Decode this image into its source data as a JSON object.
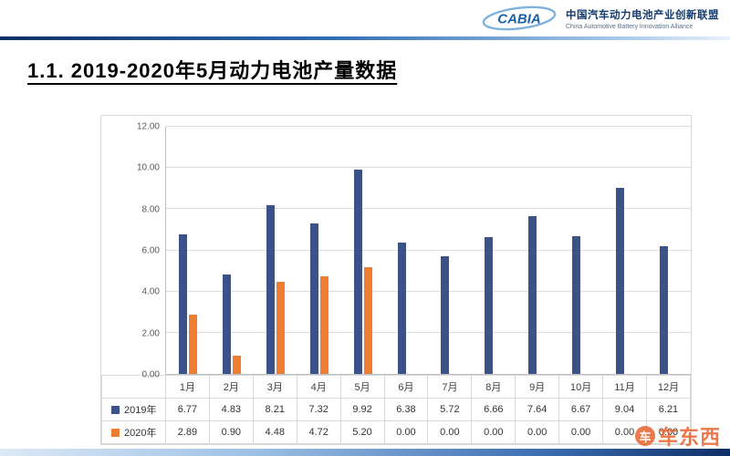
{
  "header": {
    "logo_text": "CABIA",
    "org_cn": "中国汽车动力电池产业创新联盟",
    "org_en": "China Automotive Battery Innovation Alliance"
  },
  "title": "1.1. 2019-2020年5月动力电池产量数据",
  "chart_data": {
    "type": "bar",
    "categories": [
      "1月",
      "2月",
      "3月",
      "4月",
      "5月",
      "6月",
      "7月",
      "8月",
      "9月",
      "10月",
      "11月",
      "12月"
    ],
    "series": [
      {
        "name": "2019年",
        "color": "#3C5186",
        "values": [
          6.77,
          4.83,
          8.21,
          7.32,
          9.92,
          6.38,
          5.72,
          6.66,
          7.64,
          6.67,
          9.04,
          6.21
        ]
      },
      {
        "name": "2020年",
        "color": "#ED7D31",
        "values": [
          2.89,
          0.9,
          4.48,
          4.72,
          5.2,
          0.0,
          0.0,
          0.0,
          0.0,
          0.0,
          0.0,
          0.0
        ]
      }
    ],
    "title": "2019-2020年5月动力电池产量数据",
    "xlabel": "",
    "ylabel": "",
    "ylim": [
      0,
      12
    ],
    "ytick_step": 2,
    "yticks": [
      "0.00",
      "2.00",
      "4.00",
      "6.00",
      "8.00",
      "10.00",
      "12.00"
    ],
    "grid": true,
    "legend_position": "table-left"
  },
  "watermark": {
    "badge": "车",
    "text": "车东西"
  }
}
